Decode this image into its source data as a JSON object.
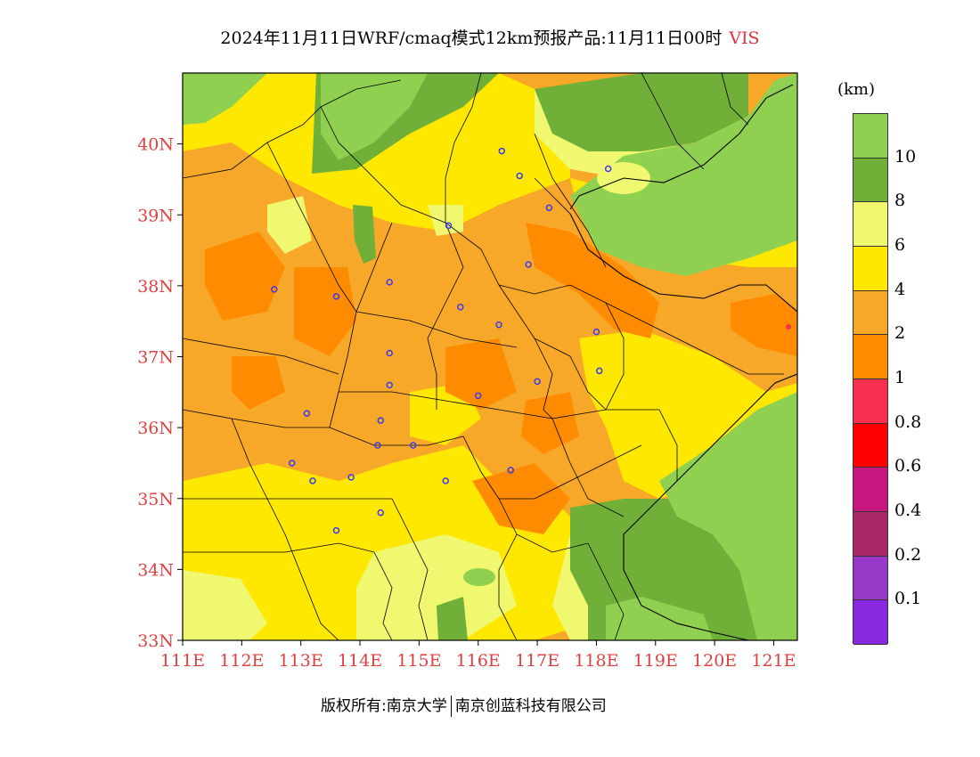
{
  "title": {
    "main": "2024年11月11日WRF/cmaq模式12km预报产品:11月11日00时",
    "variable": "VIS"
  },
  "map": {
    "lon_range": [
      111,
      121.4
    ],
    "lat_range": [
      33,
      41
    ],
    "lat_ticks": [
      "40N",
      "39N",
      "38N",
      "37N",
      "36N",
      "35N",
      "34N",
      "33N"
    ],
    "lon_ticks": [
      "111E",
      "112E",
      "113E",
      "114E",
      "115E",
      "116E",
      "117E",
      "118E",
      "119E",
      "120E",
      "121E"
    ],
    "lat_tick_values": [
      40,
      39,
      38,
      37,
      36,
      35,
      34,
      33
    ],
    "lon_tick_values": [
      111,
      112,
      113,
      114,
      115,
      116,
      117,
      118,
      119,
      120,
      121
    ]
  },
  "legend": {
    "unit": "(km)",
    "levels": [
      {
        "label": "10",
        "color": "#90d050"
      },
      {
        "label": "8",
        "color": "#70b038"
      },
      {
        "label": "6",
        "color": "#f0f870"
      },
      {
        "label": "4",
        "color": "#ffe800"
      },
      {
        "label": "2",
        "color": "#f8a828"
      },
      {
        "label": "1",
        "color": "#ff8c00"
      },
      {
        "label": "0.8",
        "color": "#f83050"
      },
      {
        "label": "0.6",
        "color": "#ff0000"
      },
      {
        "label": "0.4",
        "color": "#c81880"
      },
      {
        "label": "0.2",
        "color": "#a82868"
      },
      {
        "label": "0.1",
        "color": "#9838c8"
      },
      {
        "label": "",
        "color": "#8828e0"
      }
    ]
  },
  "cities": [
    {
      "lon": 116.4,
      "lat": 39.9
    },
    {
      "lon": 116.7,
      "lat": 39.55
    },
    {
      "lon": 117.2,
      "lat": 39.1
    },
    {
      "lon": 118.2,
      "lat": 39.65
    },
    {
      "lon": 115.5,
      "lat": 38.85
    },
    {
      "lon": 116.85,
      "lat": 38.3
    },
    {
      "lon": 112.55,
      "lat": 37.95
    },
    {
      "lon": 113.6,
      "lat": 37.85
    },
    {
      "lon": 114.5,
      "lat": 38.05
    },
    {
      "lon": 115.7,
      "lat": 37.7
    },
    {
      "lon": 116.35,
      "lat": 37.45
    },
    {
      "lon": 118.0,
      "lat": 37.35
    },
    {
      "lon": 114.5,
      "lat": 37.05
    },
    {
      "lon": 118.05,
      "lat": 36.8
    },
    {
      "lon": 117.0,
      "lat": 36.65
    },
    {
      "lon": 114.5,
      "lat": 36.6
    },
    {
      "lon": 116.0,
      "lat": 36.45
    },
    {
      "lon": 113.1,
      "lat": 36.2
    },
    {
      "lon": 114.35,
      "lat": 36.1
    },
    {
      "lon": 114.3,
      "lat": 35.75
    },
    {
      "lon": 114.9,
      "lat": 35.75
    },
    {
      "lon": 112.85,
      "lat": 35.5
    },
    {
      "lon": 113.2,
      "lat": 35.25
    },
    {
      "lon": 113.85,
      "lat": 35.3
    },
    {
      "lon": 115.45,
      "lat": 35.25
    },
    {
      "lon": 116.55,
      "lat": 35.4
    },
    {
      "lon": 114.35,
      "lat": 34.8
    },
    {
      "lon": 113.6,
      "lat": 34.55
    }
  ],
  "footer": {
    "left": "版权所有:南京大学",
    "right": "南京创蓝科技有限公司"
  }
}
